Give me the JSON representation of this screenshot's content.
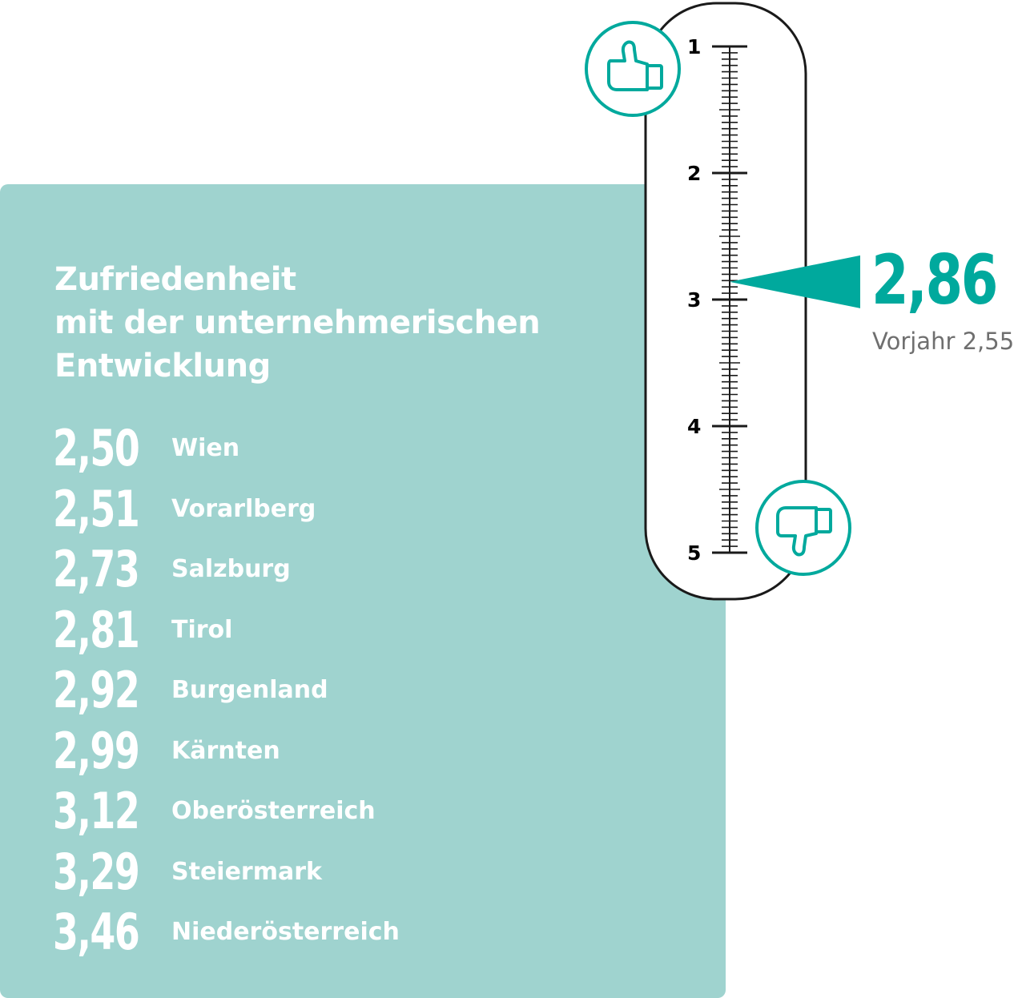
{
  "chart_data": {
    "type": "bar",
    "title": "Zufriedenheit mit der unternehmerischen Entwicklung",
    "title_lines": [
      "Zufriedenheit",
      "mit der unternehmerischen",
      "Entwicklung"
    ],
    "rows": [
      {
        "value": "2,50",
        "name": "Wien"
      },
      {
        "value": "2,51",
        "name": "Vorarlberg"
      },
      {
        "value": "2,73",
        "name": "Salzburg"
      },
      {
        "value": "2,81",
        "name": "Tirol"
      },
      {
        "value": "2,92",
        "name": "Burgenland"
      },
      {
        "value": "2,99",
        "name": "Kärnten"
      },
      {
        "value": "3,12",
        "name": "Oberösterreich"
      },
      {
        "value": "3,29",
        "name": "Steiermark"
      },
      {
        "value": "3,46",
        "name": "Niederösterreich"
      }
    ],
    "scale": {
      "min": 1,
      "max": 5,
      "ticks": [
        "1",
        "2",
        "3",
        "4",
        "5"
      ]
    },
    "current": {
      "value": 2.86,
      "label": "2,86"
    },
    "previous": {
      "label": "Vorjahr 2,55"
    }
  },
  "icons": {
    "top": "thumbs-up-icon",
    "bottom": "thumbs-down-icon"
  },
  "colors": {
    "accent": "#00a99d",
    "panel": "#9fd3cf",
    "text_light": "#ffffff",
    "muted": "#6f6f6f"
  }
}
